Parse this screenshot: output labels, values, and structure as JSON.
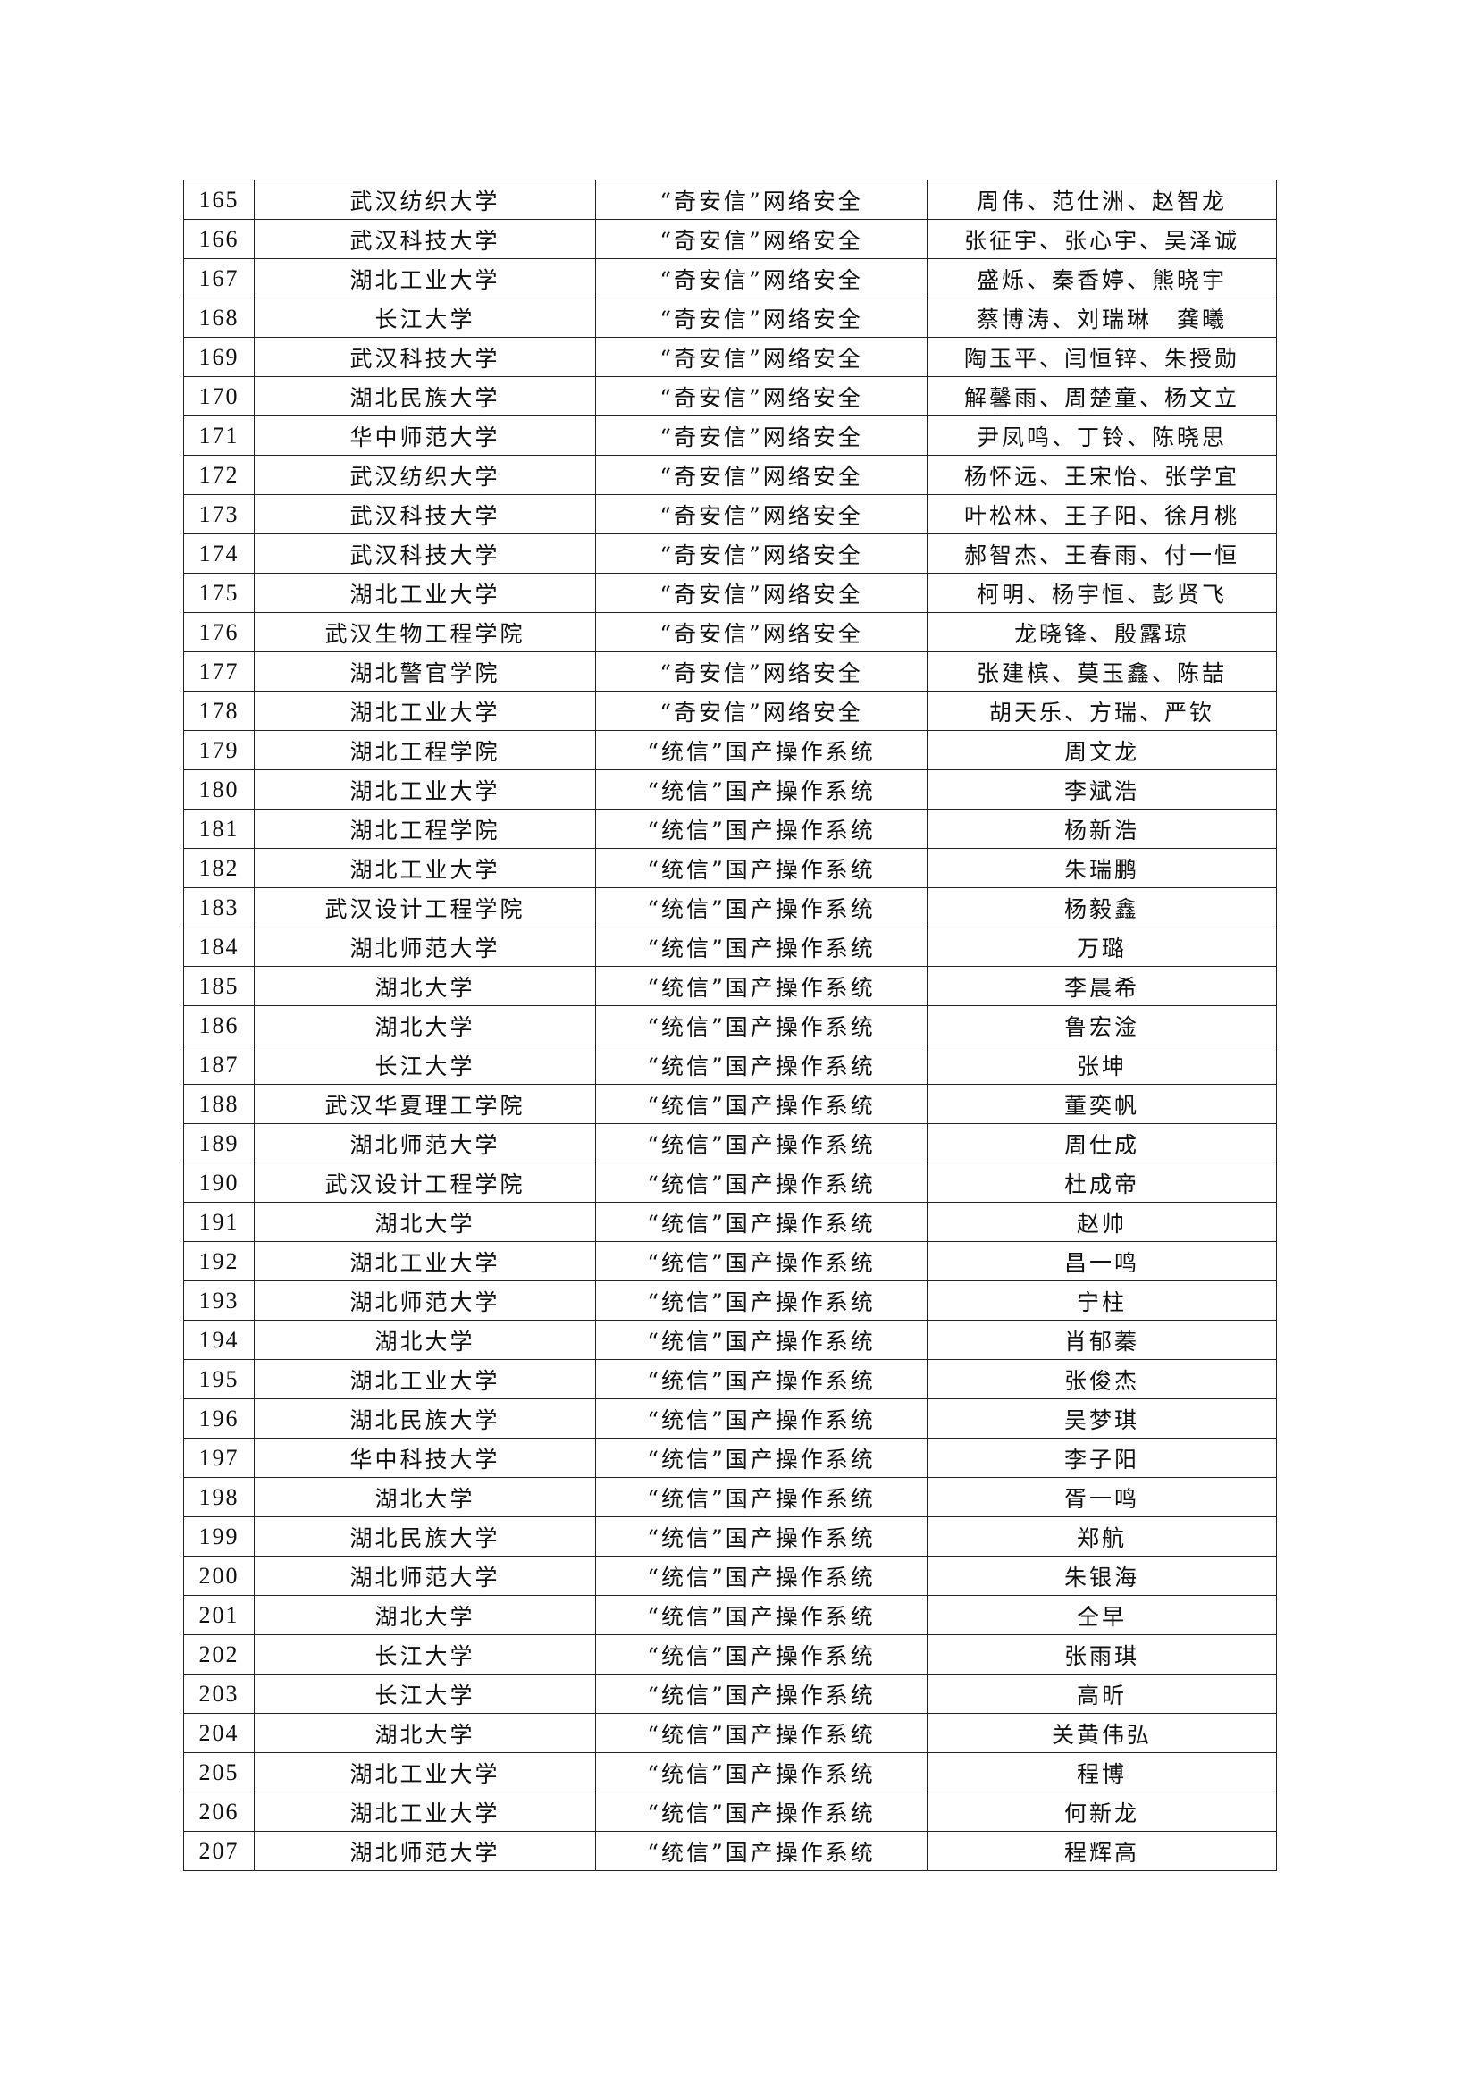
{
  "table": {
    "rows": [
      [
        "165",
        "武汉纺织大学",
        "“奇安信”网络安全",
        "周伟、范仕洲、赵智龙"
      ],
      [
        "166",
        "武汉科技大学",
        "“奇安信”网络安全",
        "张征宇、张心宇、吴泽诚"
      ],
      [
        "167",
        "湖北工业大学",
        "“奇安信”网络安全",
        "盛烁、秦香婷、熊晓宇"
      ],
      [
        "168",
        "长江大学",
        "“奇安信”网络安全",
        "蔡博涛、刘瑞琳　龚曦"
      ],
      [
        "169",
        "武汉科技大学",
        "“奇安信”网络安全",
        "陶玉平、闫恒锌、朱授勋"
      ],
      [
        "170",
        "湖北民族大学",
        "“奇安信”网络安全",
        "解馨雨、周楚童、杨文立"
      ],
      [
        "171",
        "华中师范大学",
        "“奇安信”网络安全",
        "尹凤鸣、丁铃、陈晓思"
      ],
      [
        "172",
        "武汉纺织大学",
        "“奇安信”网络安全",
        "杨怀远、王宋怡、张学宜"
      ],
      [
        "173",
        "武汉科技大学",
        "“奇安信”网络安全",
        "叶松林、王子阳、徐月桃"
      ],
      [
        "174",
        "武汉科技大学",
        "“奇安信”网络安全",
        "郝智杰、王春雨、付一恒"
      ],
      [
        "175",
        "湖北工业大学",
        "“奇安信”网络安全",
        "柯明、杨宇恒、彭贤飞"
      ],
      [
        "176",
        "武汉生物工程学院",
        "“奇安信”网络安全",
        "龙晓锋、殷露琼"
      ],
      [
        "177",
        "湖北警官学院",
        "“奇安信”网络安全",
        "张建槟、莫玉鑫、陈喆"
      ],
      [
        "178",
        "湖北工业大学",
        "“奇安信”网络安全",
        "胡天乐、方瑞、严钦"
      ],
      [
        "179",
        "湖北工程学院",
        "“统信”国产操作系统",
        "周文龙"
      ],
      [
        "180",
        "湖北工业大学",
        "“统信”国产操作系统",
        "李斌浩"
      ],
      [
        "181",
        "湖北工程学院",
        "“统信”国产操作系统",
        "杨新浩"
      ],
      [
        "182",
        "湖北工业大学",
        "“统信”国产操作系统",
        "朱瑞鹏"
      ],
      [
        "183",
        "武汉设计工程学院",
        "“统信”国产操作系统",
        "杨毅鑫"
      ],
      [
        "184",
        "湖北师范大学",
        "“统信”国产操作系统",
        "万璐"
      ],
      [
        "185",
        "湖北大学",
        "“统信”国产操作系统",
        "李晨希"
      ],
      [
        "186",
        "湖北大学",
        "“统信”国产操作系统",
        "鲁宏淦"
      ],
      [
        "187",
        "长江大学",
        "“统信”国产操作系统",
        "张坤"
      ],
      [
        "188",
        "武汉华夏理工学院",
        "“统信”国产操作系统",
        "董奕帆"
      ],
      [
        "189",
        "湖北师范大学",
        "“统信”国产操作系统",
        "周仕成"
      ],
      [
        "190",
        "武汉设计工程学院",
        "“统信”国产操作系统",
        "杜成帝"
      ],
      [
        "191",
        "湖北大学",
        "“统信”国产操作系统",
        "赵帅"
      ],
      [
        "192",
        "湖北工业大学",
        "“统信”国产操作系统",
        "昌一鸣"
      ],
      [
        "193",
        "湖北师范大学",
        "“统信”国产操作系统",
        "宁柱"
      ],
      [
        "194",
        "湖北大学",
        "“统信”国产操作系统",
        "肖郁蓁"
      ],
      [
        "195",
        "湖北工业大学",
        "“统信”国产操作系统",
        "张俊杰"
      ],
      [
        "196",
        "湖北民族大学",
        "“统信”国产操作系统",
        "吴梦琪"
      ],
      [
        "197",
        "华中科技大学",
        "“统信”国产操作系统",
        "李子阳"
      ],
      [
        "198",
        "湖北大学",
        "“统信”国产操作系统",
        "胥一鸣"
      ],
      [
        "199",
        "湖北民族大学",
        "“统信”国产操作系统",
        "郑航"
      ],
      [
        "200",
        "湖北师范大学",
        "“统信”国产操作系统",
        "朱银海"
      ],
      [
        "201",
        "湖北大学",
        "“统信”国产操作系统",
        "仝早"
      ],
      [
        "202",
        "长江大学",
        "“统信”国产操作系统",
        "张雨琪"
      ],
      [
        "203",
        "长江大学",
        "“统信”国产操作系统",
        "高昕"
      ],
      [
        "204",
        "湖北大学",
        "“统信”国产操作系统",
        "关黄伟弘"
      ],
      [
        "205",
        "湖北工业大学",
        "“统信”国产操作系统",
        "程博"
      ],
      [
        "206",
        "湖北工业大学",
        "“统信”国产操作系统",
        "何新龙"
      ],
      [
        "207",
        "湖北师范大学",
        "“统信”国产操作系统",
        "程辉高"
      ]
    ]
  }
}
